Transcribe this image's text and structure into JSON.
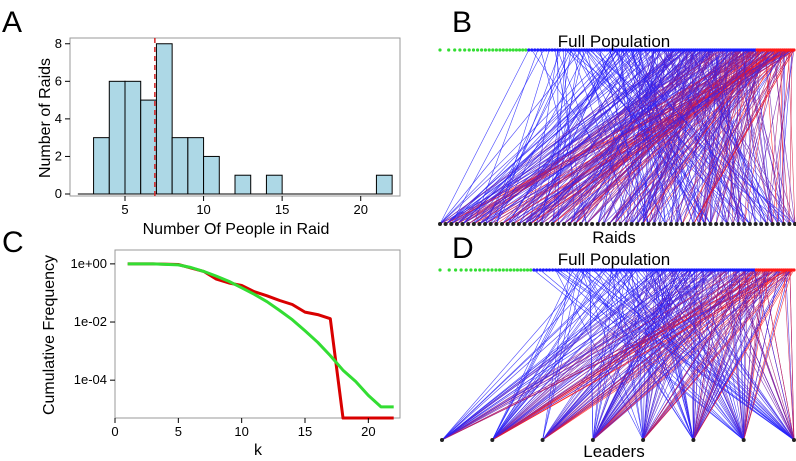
{
  "panels": {
    "a": "A",
    "b": "B",
    "c": "C",
    "d": "D"
  },
  "chart_data": [
    {
      "type": "bar",
      "panel": "A",
      "xlabel": "Number Of People in Raid",
      "ylabel": "Number of Raids",
      "bins": [
        {
          "x0": 3,
          "x1": 4,
          "count": 3
        },
        {
          "x0": 4,
          "x1": 5,
          "count": 6
        },
        {
          "x0": 5,
          "x1": 6,
          "count": 6
        },
        {
          "x0": 6,
          "x1": 7,
          "count": 5
        },
        {
          "x0": 7,
          "x1": 8,
          "count": 8
        },
        {
          "x0": 8,
          "x1": 9,
          "count": 3
        },
        {
          "x0": 9,
          "x1": 10,
          "count": 3
        },
        {
          "x0": 10,
          "x1": 11,
          "count": 2
        },
        {
          "x0": 12,
          "x1": 13,
          "count": 1
        },
        {
          "x0": 14,
          "x1": 15,
          "count": 1
        },
        {
          "x0": 21,
          "x1": 22,
          "count": 1
        }
      ],
      "baseline": [
        2,
        22
      ],
      "mean_line_x": 6.9,
      "xlim": [
        1.5,
        22.5
      ],
      "ylim": [
        0,
        8.2
      ],
      "xticks": [
        5,
        10,
        15,
        20
      ],
      "yticks": [
        0,
        2,
        4,
        6,
        8
      ],
      "bar_color": "#add8e6",
      "mean_color": "#d62728"
    },
    {
      "type": "line",
      "panel": "C",
      "xlabel": "k",
      "ylabel": "Cumulative Frequency",
      "log_y": true,
      "xlim": [
        0,
        22.5
      ],
      "ylim": [
        5e-06,
        3
      ],
      "xticks": [
        0,
        5,
        10,
        15,
        20
      ],
      "yticks": [
        "1e+00",
        "1e-02",
        "1e-04"
      ],
      "series": [
        {
          "color": "#d90000",
          "x": [
            1,
            3,
            5,
            7,
            8,
            9,
            10,
            11,
            12,
            13,
            14,
            15,
            16,
            17,
            18,
            22
          ],
          "y": [
            1,
            1,
            0.95,
            0.55,
            0.3,
            0.22,
            0.18,
            0.11,
            0.08,
            0.055,
            0.04,
            0.022,
            0.018,
            0.013,
            5e-06,
            5e-06
          ]
        },
        {
          "color": "#33dd33",
          "x": [
            1,
            3,
            5,
            6,
            7,
            8,
            9,
            10,
            11,
            12,
            13,
            14,
            15,
            16,
            17,
            18,
            19,
            20,
            21,
            22
          ],
          "y": [
            1,
            1,
            0.92,
            0.75,
            0.55,
            0.38,
            0.25,
            0.15,
            0.09,
            0.05,
            0.025,
            0.012,
            0.005,
            0.002,
            0.0007,
            0.00022,
            9e-05,
            3e-05,
            1.2e-05,
            1.2e-05
          ]
        }
      ]
    },
    {
      "type": "network",
      "panel": "B",
      "top_label": "Full Population",
      "bottom_label": "Raids",
      "top_node_count": 140,
      "green_node_count": 22,
      "bottom_node_count": 64,
      "edge_count": 420,
      "colors": {
        "low": "#2222ff",
        "high": "#ff1a1a",
        "isolate": "#33dd33",
        "node": "#1a1aff"
      }
    },
    {
      "type": "network",
      "panel": "D",
      "top_label": "Full Population",
      "bottom_label": "Leaders",
      "top_node_count": 130,
      "green_node_count": 22,
      "bottom_node_count": 8,
      "edge_count": 300,
      "colors": {
        "low": "#2222ff",
        "high": "#ff1a1a",
        "isolate": "#33dd33",
        "node": "#1a1aff"
      }
    }
  ]
}
